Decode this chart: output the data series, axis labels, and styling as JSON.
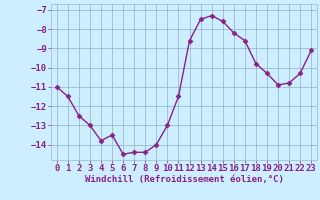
{
  "x": [
    0,
    1,
    2,
    3,
    4,
    5,
    6,
    7,
    8,
    9,
    10,
    11,
    12,
    13,
    14,
    15,
    16,
    17,
    18,
    19,
    20,
    21,
    22,
    23
  ],
  "y": [
    -11.0,
    -11.5,
    -12.5,
    -13.0,
    -13.8,
    -13.5,
    -14.5,
    -14.4,
    -14.4,
    -14.0,
    -13.0,
    -11.5,
    -8.6,
    -7.5,
    -7.3,
    -7.6,
    -8.2,
    -8.6,
    -9.8,
    -10.3,
    -10.9,
    -10.8,
    -10.3,
    -9.1
  ],
  "line_color": "#882288",
  "marker": "D",
  "marker_size": 2.5,
  "bg_color": "#cceeff",
  "grid_color": "#99bbcc",
  "xlabel": "Windchill (Refroidissement éolien,°C)",
  "text_color": "#882288",
  "ylim": [
    -14.8,
    -6.7
  ],
  "xlim": [
    -0.5,
    23.5
  ],
  "yticks": [
    -7,
    -8,
    -9,
    -10,
    -11,
    -12,
    -13,
    -14
  ],
  "xticks": [
    0,
    1,
    2,
    3,
    4,
    5,
    6,
    7,
    8,
    9,
    10,
    11,
    12,
    13,
    14,
    15,
    16,
    17,
    18,
    19,
    20,
    21,
    22,
    23
  ],
  "xlabel_fontsize": 6.5,
  "tick_fontsize": 6.5,
  "line_width": 1.0
}
